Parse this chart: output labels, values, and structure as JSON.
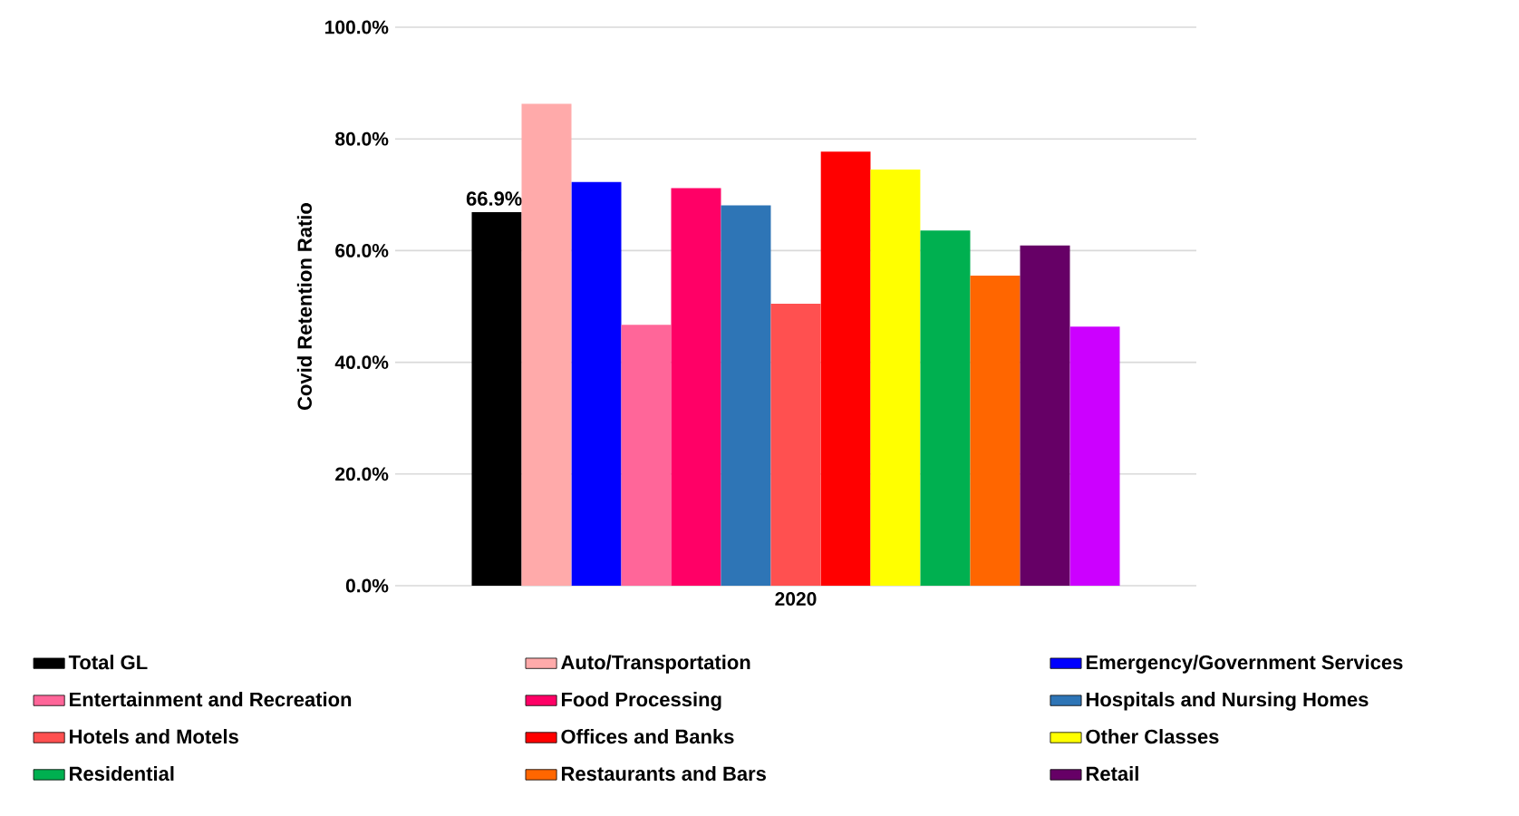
{
  "chart_data": {
    "type": "bar",
    "ylabel": "Covid Retention Ratio",
    "categories": [
      "2020"
    ],
    "ylim": [
      0,
      100
    ],
    "yticks": [
      {
        "value": 0,
        "label": "0.0%"
      },
      {
        "value": 20,
        "label": "20.0%"
      },
      {
        "value": 40,
        "label": "40.0%"
      },
      {
        "value": 60,
        "label": "60.0%"
      },
      {
        "value": 80,
        "label": "80.0%"
      },
      {
        "value": 100,
        "label": "100.0%"
      }
    ],
    "grid": "y",
    "legend": "bottom",
    "series": [
      {
        "name": "Total GL",
        "color": "#000000",
        "values": [
          66.9
        ],
        "value_labels": [
          "66.9%"
        ]
      },
      {
        "name": "Auto/Transportation",
        "color": "#ffaaaa",
        "values": [
          86.3
        ]
      },
      {
        "name": "Emergency/Government Services",
        "color": "#0000ff",
        "values": [
          72.3
        ]
      },
      {
        "name": "Entertainment and Recreation",
        "color": "#ff6699",
        "values": [
          46.7
        ]
      },
      {
        "name": "Food Processing",
        "color": "#ff0066",
        "values": [
          71.2
        ]
      },
      {
        "name": "Hospitals and Nursing Homes",
        "color": "#2e75b6",
        "values": [
          68.1
        ]
      },
      {
        "name": "Hotels and Motels",
        "color": "#ff5050",
        "values": [
          50.5
        ]
      },
      {
        "name": "Offices and Banks",
        "color": "#ff0000",
        "values": [
          77.7
        ]
      },
      {
        "name": "Other Classes",
        "color": "#ffff00",
        "values": [
          74.5
        ]
      },
      {
        "name": "Residential",
        "color": "#00b050",
        "values": [
          63.6
        ]
      },
      {
        "name": "Restaurants and Bars",
        "color": "#ff6600",
        "values": [
          55.5
        ]
      },
      {
        "name": "Retail",
        "color": "#660066",
        "values": [
          60.9
        ]
      },
      {
        "color": "#cc00ff",
        "values": [
          46.4
        ]
      }
    ]
  }
}
